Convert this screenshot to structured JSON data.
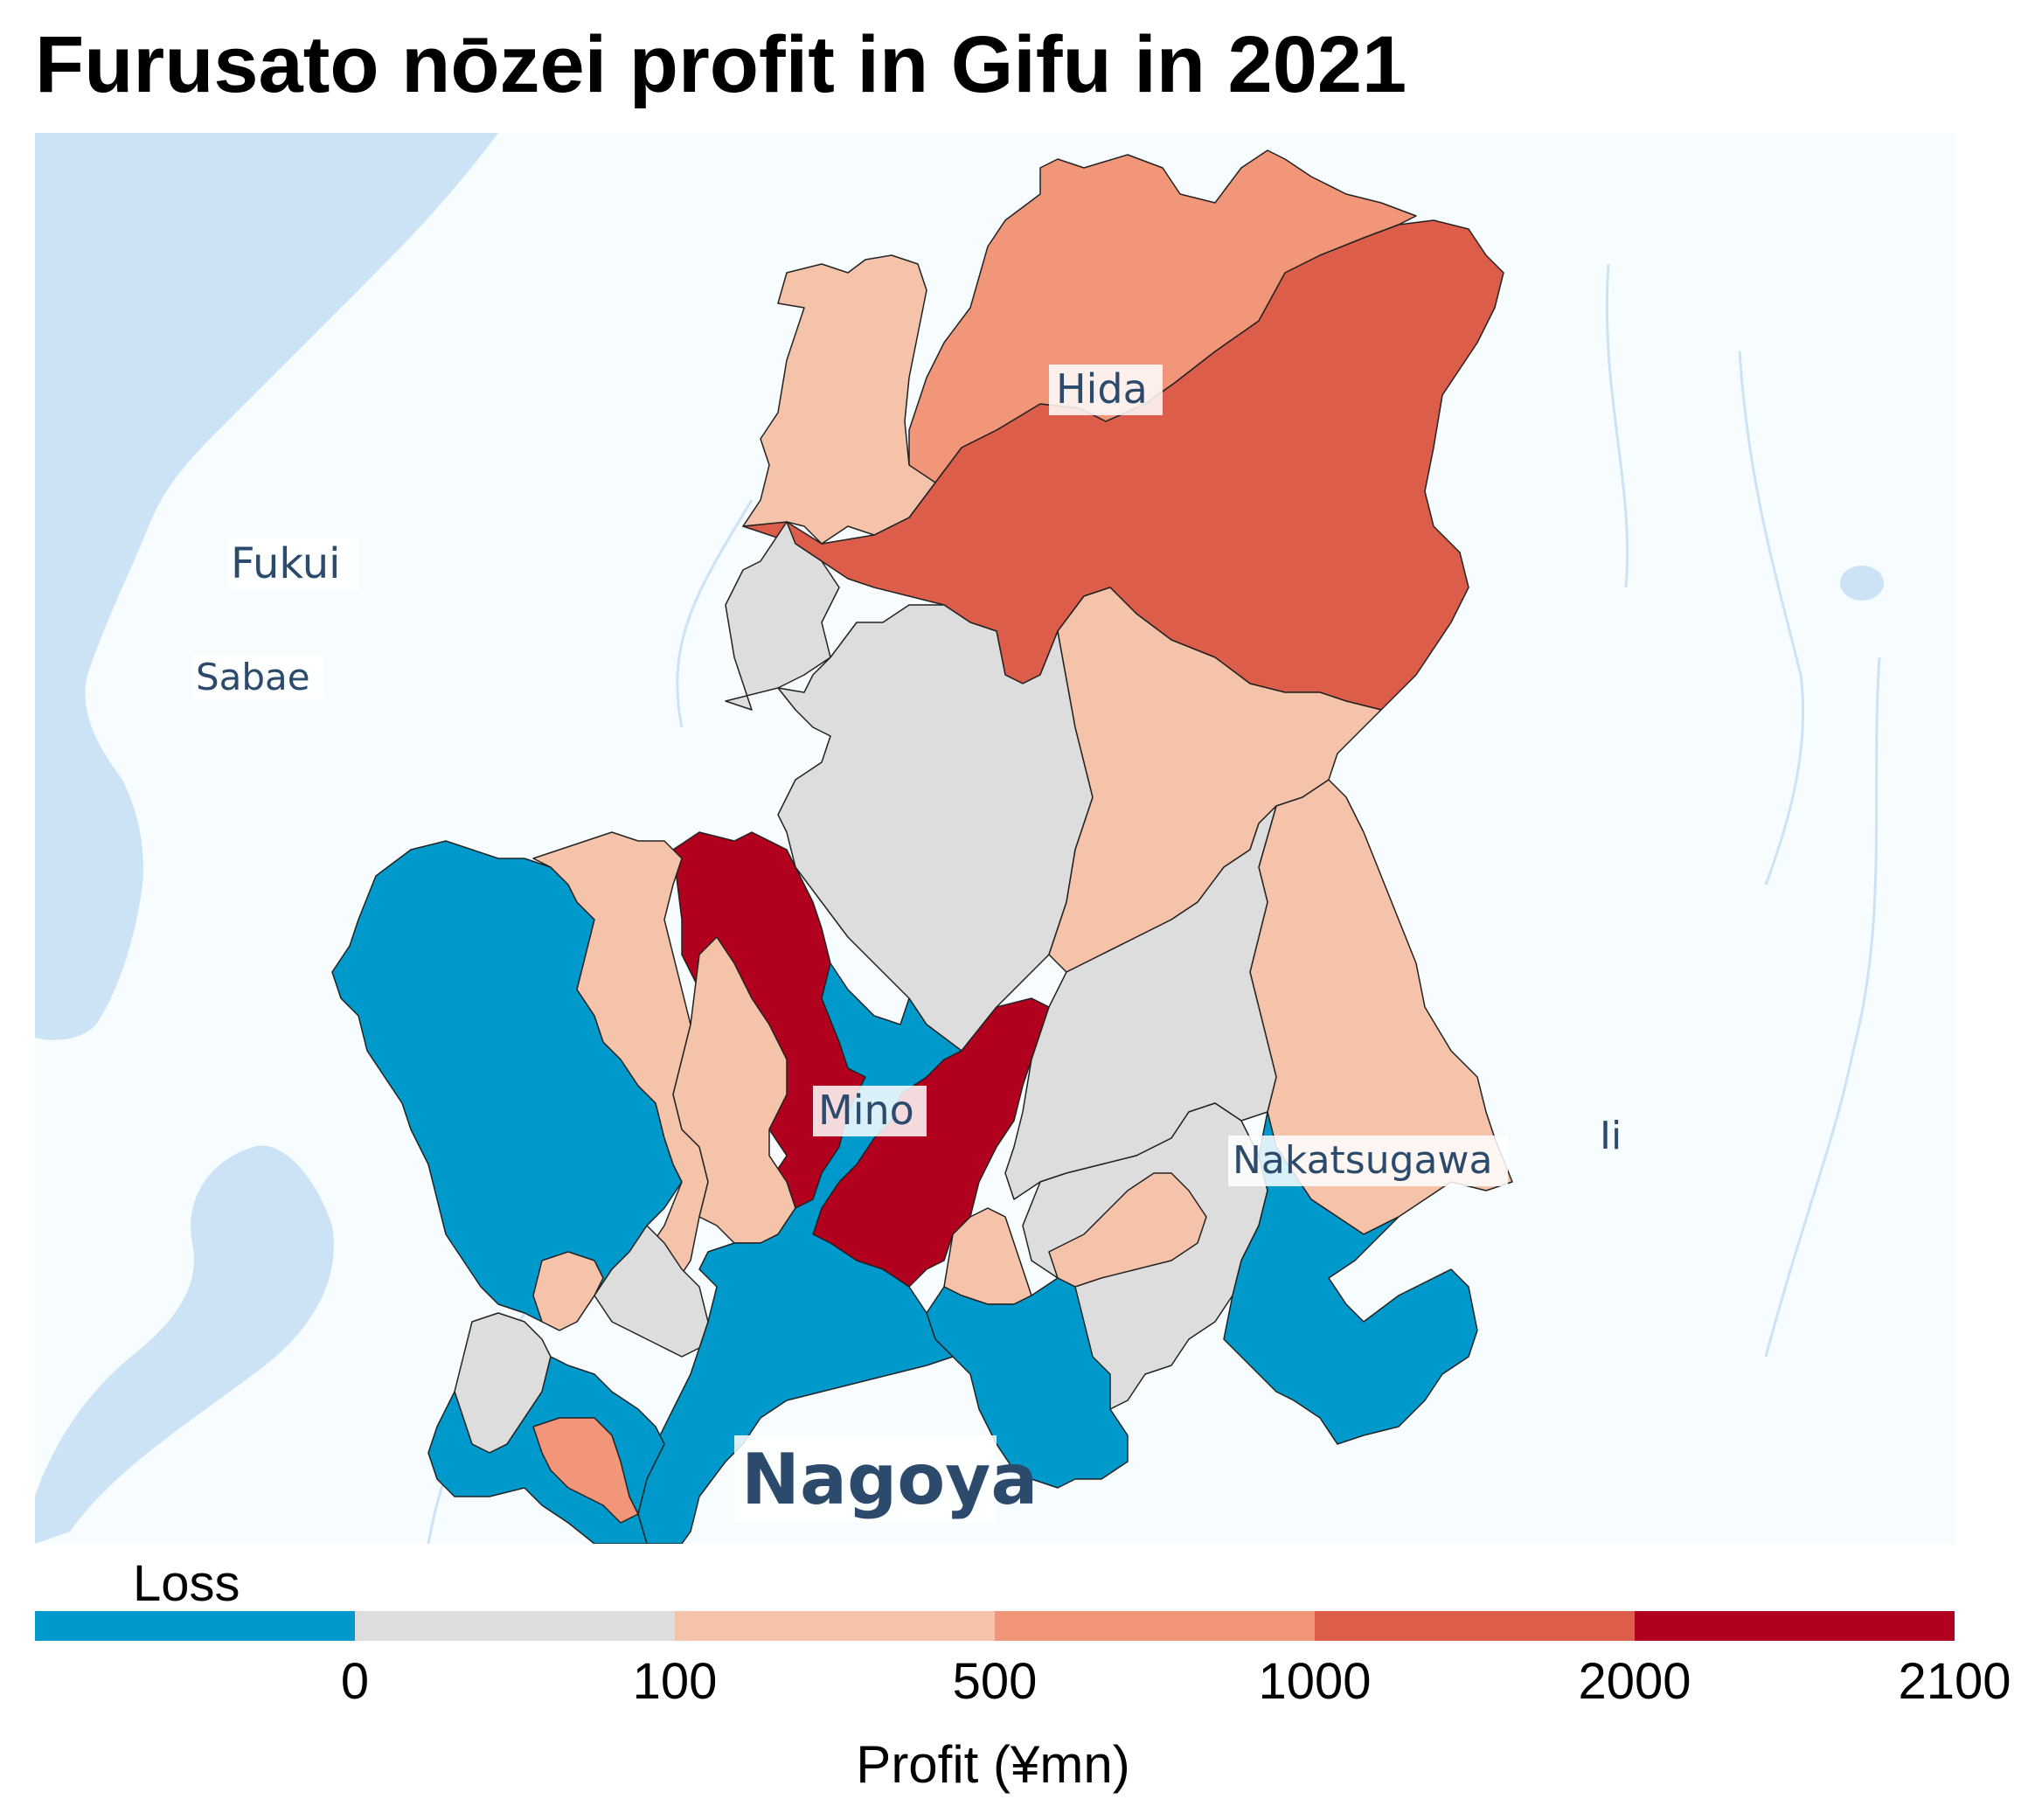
{
  "title": "Furusato nōzei profit in Gifu in 2021",
  "map": {
    "background_land": "#f7fcff",
    "water_color": "#cce3f5",
    "region_stroke": "#333333",
    "place_labels": {
      "hida": "Hida",
      "fukui": "Fukui",
      "sabae": "Sabae",
      "mino": "Mino",
      "nakatsugawa": "Nakatsugawa",
      "iida_partial": "Ii",
      "nagoya": "Nagoya"
    }
  },
  "legend": {
    "loss_label": "Loss",
    "title": "Profit (¥mn)",
    "ticks": [
      "0",
      "100",
      "500",
      "1000",
      "2000",
      "2100"
    ],
    "bins": [
      {
        "label": "Loss",
        "color": "#0099cc"
      },
      {
        "label": "0–100",
        "color": "#dddddd"
      },
      {
        "label": "100–500",
        "color": "#f4c3aa"
      },
      {
        "label": "500–1000",
        "color": "#f19679"
      },
      {
        "label": "1000–2000",
        "color": "#dc5d4a"
      },
      {
        "label": "2000–2100",
        "color": "#b2001f"
      }
    ]
  }
}
